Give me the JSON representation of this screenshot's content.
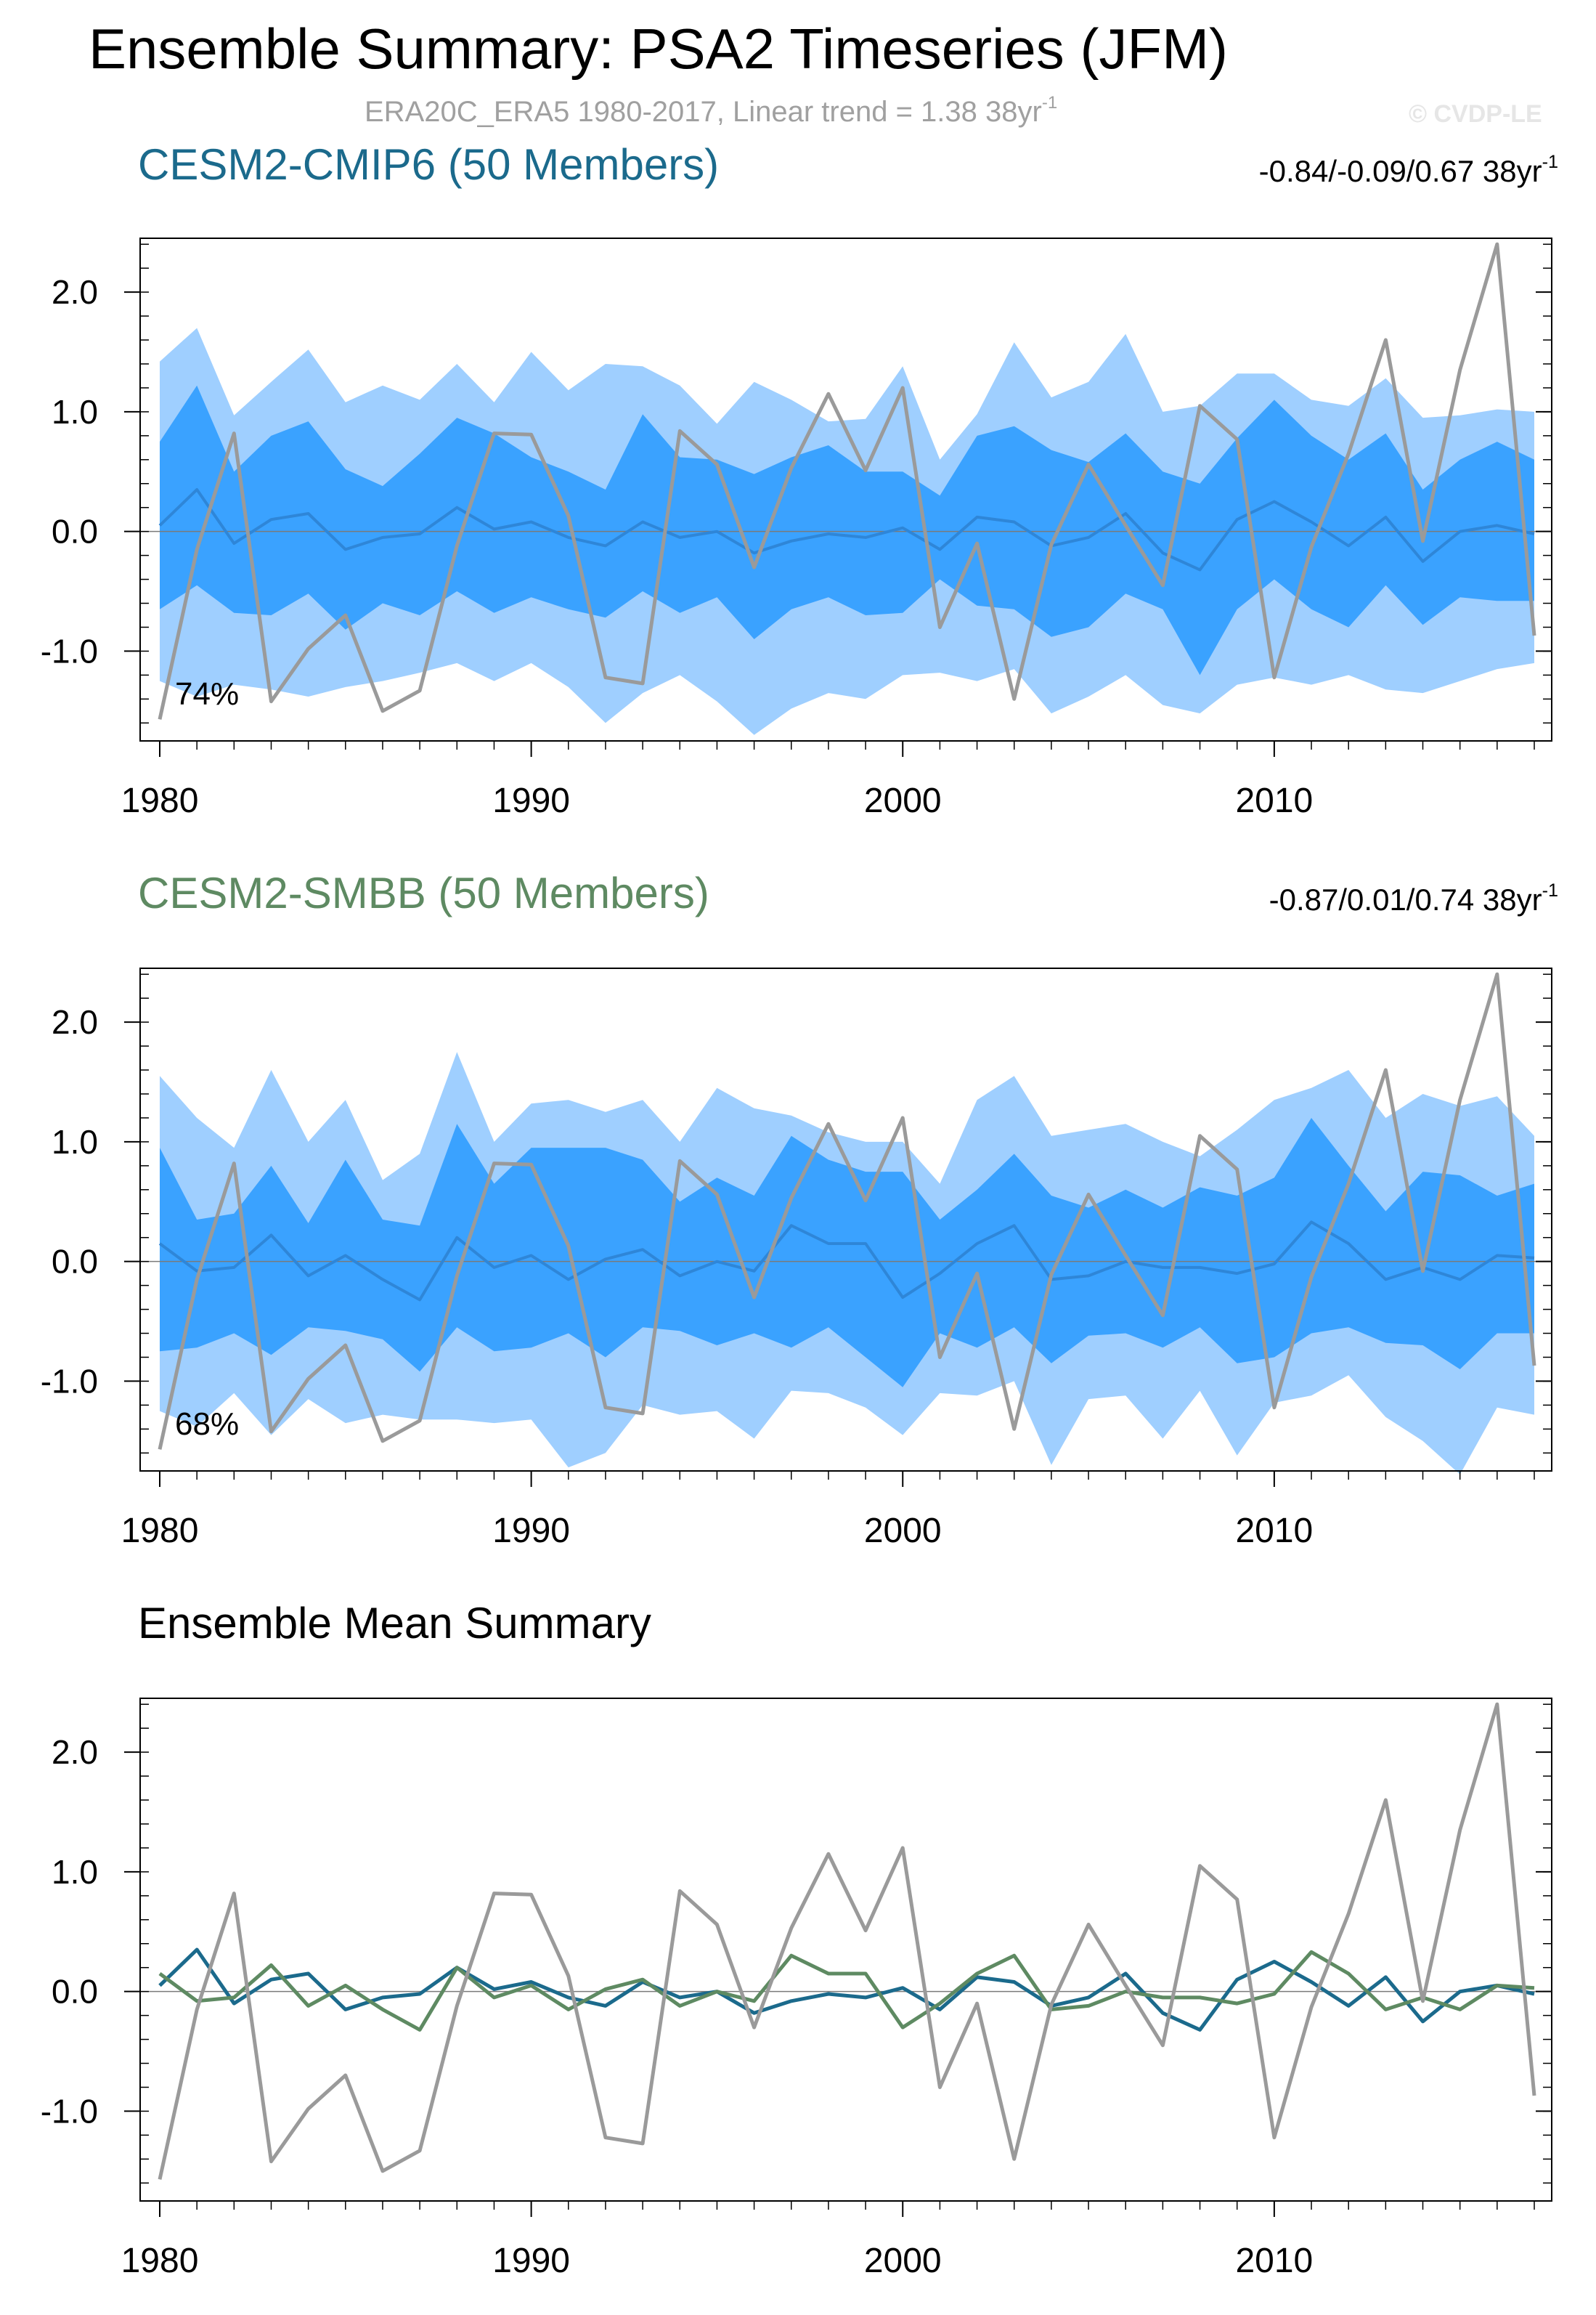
{
  "titles": {
    "main": "Ensemble Summary: PSA2 Timeseries (JFM)",
    "subtitle": "ERA20C_ERA5 1980-2017, Linear trend = 1.38 38yr",
    "subtitle_sup": "-1",
    "watermark": "© CVDP-LE"
  },
  "colors": {
    "obs": "#9a9a9a",
    "outer_band": "#9fcfff",
    "inner_band": "#3aa2ff",
    "cmip6_mean": "#1b6a8c",
    "smbb_mean": "#5e8a62",
    "cmip6_panel_mean": "#2e86d8",
    "smbb_panel_mean": "#2e86d8"
  },
  "chart_data": [
    {
      "type": "area",
      "title": "CESM2-CMIP6 (50 Members)",
      "trend_label": "-0.84/-0.09/0.67 38yr",
      "trend_sup": "-1",
      "pct_label": "74%",
      "x": [
        1980,
        1981,
        1982,
        1983,
        1984,
        1985,
        1986,
        1987,
        1988,
        1989,
        1990,
        1991,
        1992,
        1993,
        1994,
        1995,
        1996,
        1997,
        1998,
        1999,
        2000,
        2001,
        2002,
        2003,
        2004,
        2005,
        2006,
        2007,
        2008,
        2009,
        2010,
        2011,
        2012,
        2013,
        2014,
        2015,
        2016,
        2017
      ],
      "xlim": [
        1980,
        2017
      ],
      "ylim": [
        -1.75,
        2.45
      ],
      "xticks": [
        1980,
        1990,
        2000,
        2010
      ],
      "yticks": [
        -1.0,
        0.0,
        1.0,
        2.0
      ],
      "ytick_labels": [
        "-1.0",
        "0.0",
        "1.0",
        "2.0"
      ],
      "series": [
        {
          "name": "outer_upper",
          "values": [
            1.42,
            1.7,
            0.97,
            1.25,
            1.52,
            1.08,
            1.22,
            1.1,
            1.4,
            1.08,
            1.5,
            1.18,
            1.4,
            1.38,
            1.22,
            0.9,
            1.25,
            1.1,
            0.92,
            0.94,
            1.38,
            0.6,
            0.98,
            1.58,
            1.12,
            1.25,
            1.65,
            1.0,
            1.05,
            1.32,
            1.32,
            1.1,
            1.05,
            1.28,
            0.95,
            0.97,
            1.02,
            1.0
          ]
        },
        {
          "name": "inner_upper",
          "values": [
            0.75,
            1.22,
            0.5,
            0.8,
            0.92,
            0.52,
            0.38,
            0.65,
            0.95,
            0.82,
            0.62,
            0.5,
            0.35,
            0.98,
            0.62,
            0.6,
            0.48,
            0.62,
            0.72,
            0.5,
            0.5,
            0.3,
            0.8,
            0.88,
            0.68,
            0.58,
            0.82,
            0.5,
            0.4,
            0.78,
            1.1,
            0.8,
            0.6,
            0.82,
            0.35,
            0.6,
            0.75,
            0.6
          ]
        },
        {
          "name": "inner_lower",
          "values": [
            -0.65,
            -0.45,
            -0.68,
            -0.7,
            -0.52,
            -0.82,
            -0.6,
            -0.7,
            -0.5,
            -0.68,
            -0.55,
            -0.65,
            -0.72,
            -0.5,
            -0.68,
            -0.55,
            -0.9,
            -0.65,
            -0.55,
            -0.7,
            -0.68,
            -0.4,
            -0.62,
            -0.65,
            -0.88,
            -0.8,
            -0.52,
            -0.65,
            -1.2,
            -0.65,
            -0.4,
            -0.65,
            -0.8,
            -0.45,
            -0.78,
            -0.55,
            -0.58,
            -0.58
          ]
        },
        {
          "name": "outer_lower",
          "values": [
            -1.25,
            -1.38,
            -1.28,
            -1.32,
            -1.38,
            -1.3,
            -1.25,
            -1.18,
            -1.1,
            -1.25,
            -1.1,
            -1.3,
            -1.6,
            -1.35,
            -1.2,
            -1.42,
            -1.7,
            -1.48,
            -1.35,
            -1.4,
            -1.2,
            -1.18,
            -1.25,
            -1.15,
            -1.52,
            -1.38,
            -1.2,
            -1.45,
            -1.52,
            -1.28,
            -1.22,
            -1.28,
            -1.2,
            -1.32,
            -1.35,
            -1.25,
            -1.15,
            -1.1
          ]
        },
        {
          "name": "ensemble_mean",
          "values": [
            0.05,
            0.35,
            -0.1,
            0.1,
            0.15,
            -0.15,
            -0.05,
            -0.02,
            0.2,
            0.02,
            0.08,
            -0.05,
            -0.12,
            0.08,
            -0.05,
            0.0,
            -0.18,
            -0.08,
            -0.02,
            -0.05,
            0.03,
            -0.15,
            0.12,
            0.08,
            -0.12,
            -0.05,
            0.15,
            -0.18,
            -0.32,
            0.1,
            0.25,
            0.08,
            -0.12,
            0.12,
            -0.25,
            0.0,
            0.05,
            -0.02
          ]
        },
        {
          "name": "ERA20C_ERA5",
          "values": [
            -1.57,
            -0.15,
            0.82,
            -1.42,
            -0.98,
            -0.7,
            -1.5,
            -1.33,
            -0.12,
            0.82,
            0.81,
            0.13,
            -1.22,
            -1.27,
            0.84,
            0.56,
            -0.3,
            0.53,
            1.15,
            0.51,
            1.2,
            -0.8,
            -0.1,
            -1.4,
            -0.11,
            0.56,
            0.05,
            -0.45,
            1.05,
            0.77,
            -1.22,
            -0.13,
            0.65,
            1.6,
            -0.08,
            1.35,
            2.4,
            -0.87
          ]
        }
      ]
    },
    {
      "type": "area",
      "title": "CESM2-SMBB (50 Members)",
      "trend_label": "-0.87/0.01/0.74 38yr",
      "trend_sup": "-1",
      "pct_label": "68%",
      "x": [
        1980,
        1981,
        1982,
        1983,
        1984,
        1985,
        1986,
        1987,
        1988,
        1989,
        1990,
        1991,
        1992,
        1993,
        1994,
        1995,
        1996,
        1997,
        1998,
        1999,
        2000,
        2001,
        2002,
        2003,
        2004,
        2005,
        2006,
        2007,
        2008,
        2009,
        2010,
        2011,
        2012,
        2013,
        2014,
        2015,
        2016,
        2017
      ],
      "xlim": [
        1980,
        2017
      ],
      "ylim": [
        -1.75,
        2.45
      ],
      "xticks": [
        1980,
        1990,
        2000,
        2010
      ],
      "yticks": [
        -1.0,
        0.0,
        1.0,
        2.0
      ],
      "ytick_labels": [
        "-1.0",
        "0.0",
        "1.0",
        "2.0"
      ],
      "series": [
        {
          "name": "outer_upper",
          "values": [
            1.55,
            1.2,
            0.95,
            1.6,
            1.0,
            1.35,
            0.68,
            0.9,
            1.75,
            1.0,
            1.32,
            1.35,
            1.25,
            1.35,
            1.0,
            1.45,
            1.28,
            1.22,
            1.08,
            1.0,
            1.0,
            0.65,
            1.35,
            1.55,
            1.05,
            1.1,
            1.15,
            1.0,
            0.88,
            1.1,
            1.35,
            1.45,
            1.6,
            1.2,
            1.4,
            1.3,
            1.38,
            1.05
          ]
        },
        {
          "name": "inner_upper",
          "values": [
            0.95,
            0.35,
            0.4,
            0.8,
            0.32,
            0.85,
            0.35,
            0.3,
            1.15,
            0.65,
            0.95,
            0.95,
            0.95,
            0.85,
            0.5,
            0.7,
            0.55,
            1.05,
            0.85,
            0.75,
            0.75,
            0.35,
            0.6,
            0.9,
            0.55,
            0.45,
            0.6,
            0.45,
            0.62,
            0.55,
            0.7,
            1.2,
            0.8,
            0.42,
            0.75,
            0.72,
            0.55,
            0.65
          ]
        },
        {
          "name": "inner_lower",
          "values": [
            -0.75,
            -0.72,
            -0.6,
            -0.78,
            -0.55,
            -0.58,
            -0.65,
            -0.92,
            -0.55,
            -0.75,
            -0.72,
            -0.6,
            -0.8,
            -0.55,
            -0.58,
            -0.7,
            -0.6,
            -0.72,
            -0.55,
            -0.8,
            -1.05,
            -0.6,
            -0.72,
            -0.55,
            -0.85,
            -0.62,
            -0.6,
            -0.72,
            -0.55,
            -0.85,
            -0.8,
            -0.6,
            -0.55,
            -0.68,
            -0.7,
            -0.9,
            -0.6,
            -0.6
          ]
        },
        {
          "name": "outer_lower",
          "values": [
            -1.25,
            -1.38,
            -1.1,
            -1.45,
            -1.15,
            -1.35,
            -1.28,
            -1.32,
            -1.32,
            -1.35,
            -1.32,
            -1.72,
            -1.6,
            -1.2,
            -1.28,
            -1.25,
            -1.48,
            -1.08,
            -1.1,
            -1.22,
            -1.45,
            -1.1,
            -1.12,
            -1.0,
            -1.7,
            -1.15,
            -1.12,
            -1.48,
            -1.08,
            -1.62,
            -1.18,
            -1.12,
            -0.95,
            -1.3,
            -1.5,
            -1.78,
            -1.22,
            -1.28
          ]
        },
        {
          "name": "ensemble_mean",
          "values": [
            0.15,
            -0.08,
            -0.05,
            0.22,
            -0.12,
            0.05,
            -0.15,
            -0.32,
            0.2,
            -0.05,
            0.05,
            -0.15,
            0.02,
            0.1,
            -0.12,
            0.0,
            -0.08,
            0.3,
            0.15,
            0.15,
            -0.3,
            -0.1,
            0.15,
            0.3,
            -0.15,
            -0.12,
            0.0,
            -0.05,
            -0.05,
            -0.1,
            -0.02,
            0.33,
            0.15,
            -0.15,
            -0.05,
            -0.15,
            0.05,
            0.03
          ]
        },
        {
          "name": "ERA20C_ERA5",
          "values": [
            -1.57,
            -0.15,
            0.82,
            -1.42,
            -0.98,
            -0.7,
            -1.5,
            -1.33,
            -0.12,
            0.82,
            0.81,
            0.13,
            -1.22,
            -1.27,
            0.84,
            0.56,
            -0.3,
            0.53,
            1.15,
            0.51,
            1.2,
            -0.8,
            -0.1,
            -1.4,
            -0.11,
            0.56,
            0.05,
            -0.45,
            1.05,
            0.77,
            -1.22,
            -0.13,
            0.65,
            1.6,
            -0.08,
            1.35,
            2.4,
            -0.87
          ]
        }
      ]
    },
    {
      "type": "line",
      "title": "Ensemble Mean Summary",
      "x": [
        1980,
        1981,
        1982,
        1983,
        1984,
        1985,
        1986,
        1987,
        1988,
        1989,
        1990,
        1991,
        1992,
        1993,
        1994,
        1995,
        1996,
        1997,
        1998,
        1999,
        2000,
        2001,
        2002,
        2003,
        2004,
        2005,
        2006,
        2007,
        2008,
        2009,
        2010,
        2011,
        2012,
        2013,
        2014,
        2015,
        2016,
        2017
      ],
      "xlim": [
        1980,
        2017
      ],
      "ylim": [
        -1.75,
        2.45
      ],
      "xticks": [
        1980,
        1990,
        2000,
        2010
      ],
      "yticks": [
        -1.0,
        0.0,
        1.0,
        2.0
      ],
      "ytick_labels": [
        "-1.0",
        "0.0",
        "1.0",
        "2.0"
      ],
      "series": [
        {
          "name": "ERA20C_ERA5",
          "values": [
            -1.57,
            -0.15,
            0.82,
            -1.42,
            -0.98,
            -0.7,
            -1.5,
            -1.33,
            -0.12,
            0.82,
            0.81,
            0.13,
            -1.22,
            -1.27,
            0.84,
            0.56,
            -0.3,
            0.53,
            1.15,
            0.51,
            1.2,
            -0.8,
            -0.1,
            -1.4,
            -0.11,
            0.56,
            0.05,
            -0.45,
            1.05,
            0.77,
            -1.22,
            -0.13,
            0.65,
            1.6,
            -0.08,
            1.35,
            2.4,
            -0.87
          ]
        },
        {
          "name": "CESM2-CMIP6",
          "values": [
            0.05,
            0.35,
            -0.1,
            0.1,
            0.15,
            -0.15,
            -0.05,
            -0.02,
            0.2,
            0.02,
            0.08,
            -0.05,
            -0.12,
            0.08,
            -0.05,
            0.0,
            -0.18,
            -0.08,
            -0.02,
            -0.05,
            0.03,
            -0.15,
            0.12,
            0.08,
            -0.12,
            -0.05,
            0.15,
            -0.18,
            -0.32,
            0.1,
            0.25,
            0.08,
            -0.12,
            0.12,
            -0.25,
            0.0,
            0.05,
            -0.02
          ]
        },
        {
          "name": "CESM2-SMBB",
          "values": [
            0.15,
            -0.08,
            -0.05,
            0.22,
            -0.12,
            0.05,
            -0.15,
            -0.32,
            0.2,
            -0.05,
            0.05,
            -0.15,
            0.02,
            0.1,
            -0.12,
            0.0,
            -0.08,
            0.3,
            0.15,
            0.15,
            -0.3,
            -0.1,
            0.15,
            0.3,
            -0.15,
            -0.12,
            0.0,
            -0.05,
            -0.05,
            -0.1,
            -0.02,
            0.33,
            0.15,
            -0.15,
            -0.05,
            -0.15,
            0.05,
            0.03
          ]
        }
      ]
    }
  ]
}
